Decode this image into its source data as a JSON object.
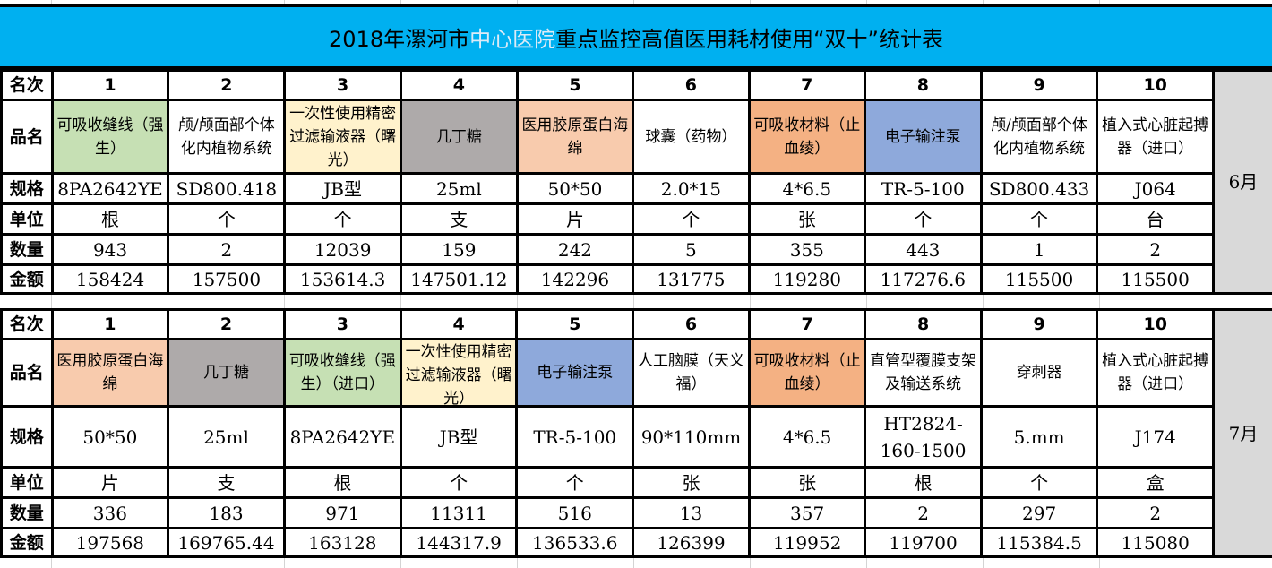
{
  "title": {
    "part1": "2018年漯河市",
    "highlight": "中心医院",
    "part2": "重点监控高值医用耗材使用“双十”统计表"
  },
  "row_labels": {
    "rank": "名次",
    "name": "品名",
    "spec": "规格",
    "unit": "单位",
    "qty": "数量",
    "amount": "金额"
  },
  "colors": {
    "title_bg": "#00b0f0",
    "green": "#c6e0b4",
    "gray": "#aeaaaa",
    "cream": "#fff2cc",
    "peach": "#f8cbad",
    "orange": "#f4b183",
    "blue": "#8ea9db",
    "month_bg": "#d9d9d9"
  },
  "tables": [
    {
      "month": "6月",
      "items": [
        {
          "rank": "1",
          "name": "可吸收缝线（强生）",
          "spec": "8PA2642YE",
          "unit": "根",
          "qty": "943",
          "amount": "158424",
          "bg": "#c6e0b4"
        },
        {
          "rank": "2",
          "name": "颅/颅面部个体化内植物系统",
          "spec": "SD800.418",
          "unit": "个",
          "qty": "2",
          "amount": "157500",
          "bg": "#ffffff"
        },
        {
          "rank": "3",
          "name": "一次性使用精密过滤输液器（曙光）",
          "spec": "JB型",
          "unit": "个",
          "qty": "12039",
          "amount": "153614.3",
          "bg": "#fff2cc"
        },
        {
          "rank": "4",
          "name": "几丁糖",
          "spec": "25ml",
          "unit": "支",
          "qty": "159",
          "amount": "147501.12",
          "bg": "#aeaaaa"
        },
        {
          "rank": "5",
          "name": "医用胶原蛋白海绵",
          "spec": "50*50",
          "unit": "片",
          "qty": "242",
          "amount": "142296",
          "bg": "#f8cbad"
        },
        {
          "rank": "6",
          "name": "球囊（药物）",
          "spec": "2.0*15",
          "unit": "个",
          "qty": "5",
          "amount": "131775",
          "bg": "#ffffff"
        },
        {
          "rank": "7",
          "name": "可吸收材料（止血绫）",
          "spec": "4*6.5",
          "unit": "张",
          "qty": "355",
          "amount": "119280",
          "bg": "#f4b183"
        },
        {
          "rank": "8",
          "name": "电子输注泵",
          "spec": "TR-5-100",
          "unit": "个",
          "qty": "443",
          "amount": "117276.6",
          "bg": "#8ea9db"
        },
        {
          "rank": "9",
          "name": "颅/颅面部个体化内植物系统",
          "spec": "SD800.433",
          "unit": "个",
          "qty": "1",
          "amount": "115500",
          "bg": "#ffffff"
        },
        {
          "rank": "10",
          "name": "植入式心脏起搏器（进口）",
          "spec": "J064",
          "unit": "台",
          "qty": "2",
          "amount": "115500",
          "bg": "#ffffff"
        }
      ]
    },
    {
      "month": "7月",
      "items": [
        {
          "rank": "1",
          "name": "医用胶原蛋白海绵",
          "spec": "50*50",
          "unit": "片",
          "qty": "336",
          "amount": "197568",
          "bg": "#f8cbad"
        },
        {
          "rank": "2",
          "name": "几丁糖",
          "spec": "25ml",
          "unit": "支",
          "qty": "183",
          "amount": "169765.44",
          "bg": "#aeaaaa"
        },
        {
          "rank": "3",
          "name": "可吸收缝线（强生）（进口）",
          "spec": "8PA2642YE",
          "unit": "根",
          "qty": "971",
          "amount": "163128",
          "bg": "#c6e0b4"
        },
        {
          "rank": "4",
          "name": "一次性使用精密过滤输液器（曙光）",
          "spec": "JB型",
          "unit": "个",
          "qty": "11311",
          "amount": "144317.9",
          "bg": "#fff2cc"
        },
        {
          "rank": "5",
          "name": "电子输注泵",
          "spec": "TR-5-100",
          "unit": "个",
          "qty": "516",
          "amount": "136533.6",
          "bg": "#8ea9db"
        },
        {
          "rank": "6",
          "name": "人工脑膜（天义福）",
          "spec": "90*110mm",
          "unit": "张",
          "qty": "13",
          "amount": "126399",
          "bg": "#ffffff"
        },
        {
          "rank": "7",
          "name": "可吸收材料（止血绫）",
          "spec": "4*6.5",
          "unit": "张",
          "qty": "357",
          "amount": "119952",
          "bg": "#f4b183"
        },
        {
          "rank": "8",
          "name": "直管型覆膜支架及输送系统",
          "spec": "HT2824-160-1500",
          "unit": "根",
          "qty": "2",
          "amount": "119700",
          "bg": "#ffffff"
        },
        {
          "rank": "9",
          "name": "穿刺器",
          "spec": "5.mm",
          "unit": "个",
          "qty": "297",
          "amount": "115384.5",
          "bg": "#ffffff"
        },
        {
          "rank": "10",
          "name": "植入式心脏起搏器（进口）",
          "spec": "J174",
          "unit": "盒",
          "qty": "2",
          "amount": "115080",
          "bg": "#ffffff"
        }
      ]
    }
  ]
}
